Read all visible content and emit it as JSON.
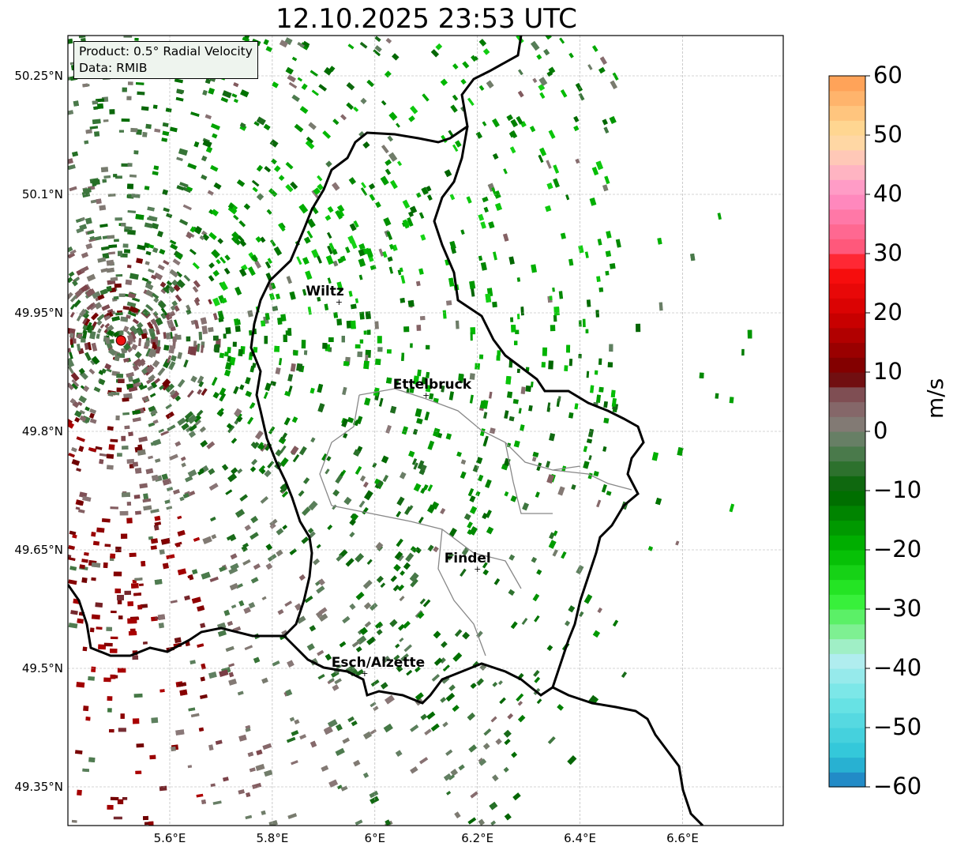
{
  "title": "12.10.2025 23:53 UTC",
  "info": {
    "product": "Product: 0.5° Radial Velocity",
    "source": "Data: RMIB"
  },
  "map": {
    "lon_range": [
      5.4,
      6.8
    ],
    "lat_range": [
      49.3,
      50.3
    ],
    "lat_ticks": [
      {
        "value": 50.25,
        "label": "50.25°N"
      },
      {
        "value": 50.1,
        "label": "50.1°N"
      },
      {
        "value": 49.95,
        "label": "49.95°N"
      },
      {
        "value": 49.8,
        "label": "49.8°N"
      },
      {
        "value": 49.65,
        "label": "49.65°N"
      },
      {
        "value": 49.5,
        "label": "49.5°N"
      },
      {
        "value": 49.35,
        "label": "49.35°N"
      }
    ],
    "lon_ticks": [
      {
        "value": 5.6,
        "label": "5.6°E"
      },
      {
        "value": 5.8,
        "label": "5.8°E"
      },
      {
        "value": 6.0,
        "label": "6°E"
      },
      {
        "value": 6.2,
        "label": "6.2°E"
      },
      {
        "value": 6.4,
        "label": "6.4°E"
      },
      {
        "value": 6.6,
        "label": "6.6°E"
      }
    ],
    "gridlines": true,
    "radar_site": {
      "lon": 5.505,
      "lat": 49.915
    },
    "cities": [
      {
        "name": "Wiltz",
        "lon": 5.93,
        "lat": 49.965
      },
      {
        "name": "Ettelbruck",
        "lon": 6.1,
        "lat": 49.847
      },
      {
        "name": "Findel",
        "lon": 6.2,
        "lat": 49.627
      },
      {
        "name": "Esch/Alzette",
        "lon": 5.98,
        "lat": 49.495
      }
    ]
  },
  "colorbar": {
    "label": "m/s",
    "min": -60,
    "max": 60,
    "ticks": [
      {
        "value": 60,
        "label": "60"
      },
      {
        "value": 50,
        "label": "50"
      },
      {
        "value": 40,
        "label": "40"
      },
      {
        "value": 30,
        "label": "30"
      },
      {
        "value": 20,
        "label": "20"
      },
      {
        "value": 10,
        "label": "10"
      },
      {
        "value": 0,
        "label": "0"
      },
      {
        "value": -10,
        "label": "−10"
      },
      {
        "value": -20,
        "label": "−20"
      },
      {
        "value": -30,
        "label": "−30"
      },
      {
        "value": -40,
        "label": "−40"
      },
      {
        "value": -50,
        "label": "−50"
      },
      {
        "value": -60,
        "label": "−60"
      }
    ],
    "stops": [
      {
        "value": -60,
        "color": "#1f78c1"
      },
      {
        "value": -55,
        "color": "#2bc4d8"
      },
      {
        "value": -45,
        "color": "#6fe6e6"
      },
      {
        "value": -38,
        "color": "#b8eef0"
      },
      {
        "value": -35,
        "color": "#8ff0a8"
      },
      {
        "value": -28,
        "color": "#2ef02e"
      },
      {
        "value": -20,
        "color": "#00b800"
      },
      {
        "value": -10,
        "color": "#006400"
      },
      {
        "value": -2,
        "color": "#5f8060"
      },
      {
        "value": 2,
        "color": "#8a7878"
      },
      {
        "value": 8,
        "color": "#7a3c44"
      },
      {
        "value": 9,
        "color": "#6e0000"
      },
      {
        "value": 20,
        "color": "#d40000"
      },
      {
        "value": 28,
        "color": "#ff1010"
      },
      {
        "value": 30,
        "color": "#ff5070"
      },
      {
        "value": 40,
        "color": "#ff90c8"
      },
      {
        "value": 45,
        "color": "#ffc0c0"
      },
      {
        "value": 50,
        "color": "#ffdf9a"
      },
      {
        "value": 60,
        "color": "#ff9a50"
      }
    ]
  }
}
